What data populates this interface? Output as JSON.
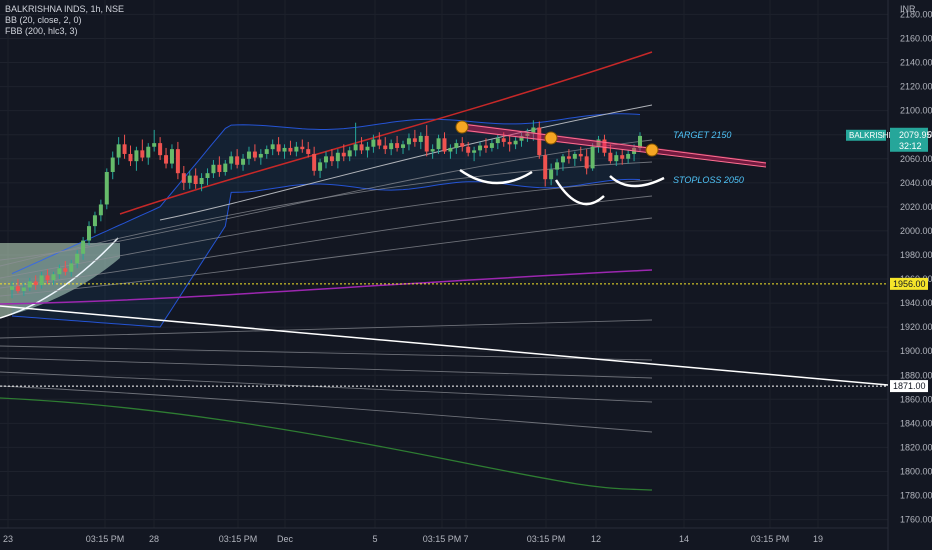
{
  "chart_data": {
    "type": "candlestick",
    "symbol_line": "BALKRISHNA INDS, 1h, NSE",
    "indicators": [
      "BB (20, close, 2, 0)",
      "FBB (200, hlc3, 3)"
    ],
    "currency": "INR",
    "y_ticks": [
      2180,
      2160,
      2140,
      2120,
      2100,
      2080,
      2060,
      2040,
      2020,
      2000,
      1980,
      1960,
      1940,
      1920,
      1900,
      1880,
      1860,
      1840,
      1820,
      1800,
      1780,
      1760
    ],
    "y_range": [
      1753,
      2192
    ],
    "x_labels": [
      "23",
      "03:15 PM",
      "28",
      "03:15 PM",
      "Dec",
      "5",
      "03:15 PM",
      "7",
      "03:15 PM",
      "12",
      "14",
      "03:15 PM",
      "19"
    ],
    "last_price_label": {
      "symbol": "BALKRISHNO",
      "price": "2079.95",
      "countdown": "32:12"
    },
    "levels": [
      {
        "value": 1956.0,
        "label": "1956.00",
        "style": "dotted",
        "color": "#f5e52a"
      },
      {
        "value": 1871.0,
        "label": "1871.00",
        "style": "dotted",
        "color": "#ffffff"
      }
    ],
    "annotations": [
      {
        "text": "TARGET 2150",
        "price": 2090
      },
      {
        "text": "STOPLOSS 2050",
        "price": 2055
      }
    ],
    "candles": [
      {
        "o": 1951,
        "h": 1958,
        "l": 1944,
        "c": 1954
      },
      {
        "o": 1954,
        "h": 1960,
        "l": 1948,
        "c": 1950
      },
      {
        "o": 1950,
        "h": 1957,
        "l": 1946,
        "c": 1953
      },
      {
        "o": 1953,
        "h": 1961,
        "l": 1950,
        "c": 1958
      },
      {
        "o": 1958,
        "h": 1963,
        "l": 1951,
        "c": 1955
      },
      {
        "o": 1955,
        "h": 1966,
        "l": 1952,
        "c": 1963
      },
      {
        "o": 1963,
        "h": 1968,
        "l": 1956,
        "c": 1959
      },
      {
        "o": 1959,
        "h": 1966,
        "l": 1955,
        "c": 1964
      },
      {
        "o": 1964,
        "h": 1972,
        "l": 1960,
        "c": 1969
      },
      {
        "o": 1969,
        "h": 1975,
        "l": 1963,
        "c": 1966
      },
      {
        "o": 1966,
        "h": 1976,
        "l": 1962,
        "c": 1973
      },
      {
        "o": 1973,
        "h": 1984,
        "l": 1969,
        "c": 1981
      },
      {
        "o": 1981,
        "h": 1995,
        "l": 1976,
        "c": 1992
      },
      {
        "o": 1992,
        "h": 2008,
        "l": 1988,
        "c": 2004
      },
      {
        "o": 2004,
        "h": 2016,
        "l": 1998,
        "c": 2013
      },
      {
        "o": 2013,
        "h": 2026,
        "l": 2008,
        "c": 2022
      },
      {
        "o": 2022,
        "h": 2052,
        "l": 2018,
        "c": 2049
      },
      {
        "o": 2049,
        "h": 2066,
        "l": 2043,
        "c": 2061
      },
      {
        "o": 2061,
        "h": 2078,
        "l": 2055,
        "c": 2072
      },
      {
        "o": 2072,
        "h": 2080,
        "l": 2060,
        "c": 2064
      },
      {
        "o": 2064,
        "h": 2071,
        "l": 2054,
        "c": 2058
      },
      {
        "o": 2058,
        "h": 2070,
        "l": 2050,
        "c": 2067
      },
      {
        "o": 2067,
        "h": 2076,
        "l": 2058,
        "c": 2061
      },
      {
        "o": 2061,
        "h": 2073,
        "l": 2055,
        "c": 2070
      },
      {
        "o": 2070,
        "h": 2084,
        "l": 2066,
        "c": 2073
      },
      {
        "o": 2073,
        "h": 2078,
        "l": 2059,
        "c": 2063
      },
      {
        "o": 2063,
        "h": 2069,
        "l": 2052,
        "c": 2056
      },
      {
        "o": 2056,
        "h": 2072,
        "l": 2052,
        "c": 2068
      },
      {
        "o": 2068,
        "h": 2074,
        "l": 2043,
        "c": 2048
      },
      {
        "o": 2048,
        "h": 2054,
        "l": 2034,
        "c": 2040
      },
      {
        "o": 2040,
        "h": 2050,
        "l": 2035,
        "c": 2046
      },
      {
        "o": 2046,
        "h": 2052,
        "l": 2035,
        "c": 2039
      },
      {
        "o": 2039,
        "h": 2048,
        "l": 2033,
        "c": 2044
      },
      {
        "o": 2044,
        "h": 2052,
        "l": 2038,
        "c": 2048
      },
      {
        "o": 2048,
        "h": 2059,
        "l": 2044,
        "c": 2055
      },
      {
        "o": 2055,
        "h": 2062,
        "l": 2045,
        "c": 2049
      },
      {
        "o": 2049,
        "h": 2059,
        "l": 2046,
        "c": 2056
      },
      {
        "o": 2056,
        "h": 2066,
        "l": 2051,
        "c": 2062
      },
      {
        "o": 2062,
        "h": 2068,
        "l": 2052,
        "c": 2055
      },
      {
        "o": 2055,
        "h": 2064,
        "l": 2050,
        "c": 2060
      },
      {
        "o": 2060,
        "h": 2070,
        "l": 2055,
        "c": 2066
      },
      {
        "o": 2066,
        "h": 2072,
        "l": 2058,
        "c": 2061
      },
      {
        "o": 2061,
        "h": 2068,
        "l": 2055,
        "c": 2064
      },
      {
        "o": 2064,
        "h": 2071,
        "l": 2060,
        "c": 2068
      },
      {
        "o": 2068,
        "h": 2076,
        "l": 2063,
        "c": 2072
      },
      {
        "o": 2072,
        "h": 2078,
        "l": 2063,
        "c": 2066
      },
      {
        "o": 2066,
        "h": 2072,
        "l": 2060,
        "c": 2069
      },
      {
        "o": 2069,
        "h": 2075,
        "l": 2063,
        "c": 2066
      },
      {
        "o": 2066,
        "h": 2074,
        "l": 2062,
        "c": 2070
      },
      {
        "o": 2070,
        "h": 2076,
        "l": 2065,
        "c": 2068
      },
      {
        "o": 2068,
        "h": 2074,
        "l": 2061,
        "c": 2064
      },
      {
        "o": 2064,
        "h": 2070,
        "l": 2046,
        "c": 2050
      },
      {
        "o": 2050,
        "h": 2060,
        "l": 2044,
        "c": 2057
      },
      {
        "o": 2057,
        "h": 2066,
        "l": 2052,
        "c": 2062
      },
      {
        "o": 2062,
        "h": 2068,
        "l": 2054,
        "c": 2058
      },
      {
        "o": 2058,
        "h": 2068,
        "l": 2052,
        "c": 2065
      },
      {
        "o": 2065,
        "h": 2072,
        "l": 2058,
        "c": 2062
      },
      {
        "o": 2062,
        "h": 2070,
        "l": 2058,
        "c": 2067
      },
      {
        "o": 2067,
        "h": 2090,
        "l": 2062,
        "c": 2072
      },
      {
        "o": 2072,
        "h": 2078,
        "l": 2064,
        "c": 2067
      },
      {
        "o": 2067,
        "h": 2074,
        "l": 2061,
        "c": 2070
      },
      {
        "o": 2070,
        "h": 2080,
        "l": 2065,
        "c": 2076
      },
      {
        "o": 2076,
        "h": 2082,
        "l": 2068,
        "c": 2071
      },
      {
        "o": 2071,
        "h": 2078,
        "l": 2064,
        "c": 2068
      },
      {
        "o": 2068,
        "h": 2076,
        "l": 2063,
        "c": 2073
      },
      {
        "o": 2073,
        "h": 2079,
        "l": 2066,
        "c": 2069
      },
      {
        "o": 2069,
        "h": 2075,
        "l": 2064,
        "c": 2072
      },
      {
        "o": 2072,
        "h": 2081,
        "l": 2067,
        "c": 2077
      },
      {
        "o": 2077,
        "h": 2084,
        "l": 2070,
        "c": 2074
      },
      {
        "o": 2074,
        "h": 2082,
        "l": 2068,
        "c": 2079
      },
      {
        "o": 2079,
        "h": 2088,
        "l": 2062,
        "c": 2066
      },
      {
        "o": 2066,
        "h": 2072,
        "l": 2060,
        "c": 2068
      },
      {
        "o": 2068,
        "h": 2080,
        "l": 2064,
        "c": 2077
      },
      {
        "o": 2077,
        "h": 2082,
        "l": 2064,
        "c": 2066
      },
      {
        "o": 2066,
        "h": 2072,
        "l": 2060,
        "c": 2069
      },
      {
        "o": 2069,
        "h": 2076,
        "l": 2064,
        "c": 2073
      },
      {
        "o": 2073,
        "h": 2078,
        "l": 2066,
        "c": 2070
      },
      {
        "o": 2070,
        "h": 2074,
        "l": 2062,
        "c": 2065
      },
      {
        "o": 2065,
        "h": 2070,
        "l": 2058,
        "c": 2067
      },
      {
        "o": 2067,
        "h": 2074,
        "l": 2062,
        "c": 2071
      },
      {
        "o": 2071,
        "h": 2077,
        "l": 2065,
        "c": 2069
      },
      {
        "o": 2069,
        "h": 2076,
        "l": 2066,
        "c": 2073
      },
      {
        "o": 2073,
        "h": 2080,
        "l": 2068,
        "c": 2077
      },
      {
        "o": 2077,
        "h": 2082,
        "l": 2070,
        "c": 2074
      },
      {
        "o": 2074,
        "h": 2080,
        "l": 2066,
        "c": 2072
      },
      {
        "o": 2072,
        "h": 2078,
        "l": 2068,
        "c": 2075
      },
      {
        "o": 2075,
        "h": 2082,
        "l": 2070,
        "c": 2079
      },
      {
        "o": 2079,
        "h": 2085,
        "l": 2074,
        "c": 2081
      },
      {
        "o": 2081,
        "h": 2092,
        "l": 2075,
        "c": 2086
      },
      {
        "o": 2086,
        "h": 2091,
        "l": 2060,
        "c": 2063
      },
      {
        "o": 2063,
        "h": 2068,
        "l": 2037,
        "c": 2043
      },
      {
        "o": 2043,
        "h": 2056,
        "l": 2038,
        "c": 2051
      },
      {
        "o": 2051,
        "h": 2060,
        "l": 2046,
        "c": 2057
      },
      {
        "o": 2057,
        "h": 2064,
        "l": 2050,
        "c": 2062
      },
      {
        "o": 2062,
        "h": 2068,
        "l": 2056,
        "c": 2060
      },
      {
        "o": 2060,
        "h": 2066,
        "l": 2054,
        "c": 2064
      },
      {
        "o": 2064,
        "h": 2070,
        "l": 2058,
        "c": 2062
      },
      {
        "o": 2062,
        "h": 2068,
        "l": 2047,
        "c": 2052
      },
      {
        "o": 2052,
        "h": 2073,
        "l": 2050,
        "c": 2070
      },
      {
        "o": 2070,
        "h": 2079,
        "l": 2065,
        "c": 2076
      },
      {
        "o": 2076,
        "h": 2080,
        "l": 2062,
        "c": 2065
      },
      {
        "o": 2065,
        "h": 2072,
        "l": 2056,
        "c": 2058
      },
      {
        "o": 2058,
        "h": 2066,
        "l": 2054,
        "c": 2063
      },
      {
        "o": 2063,
        "h": 2068,
        "l": 2055,
        "c": 2060
      },
      {
        "o": 2060,
        "h": 2067,
        "l": 2056,
        "c": 2064
      },
      {
        "o": 2064,
        "h": 2072,
        "l": 2058,
        "c": 2069
      },
      {
        "o": 2069,
        "h": 2082,
        "l": 2066,
        "c": 2079
      }
    ]
  }
}
